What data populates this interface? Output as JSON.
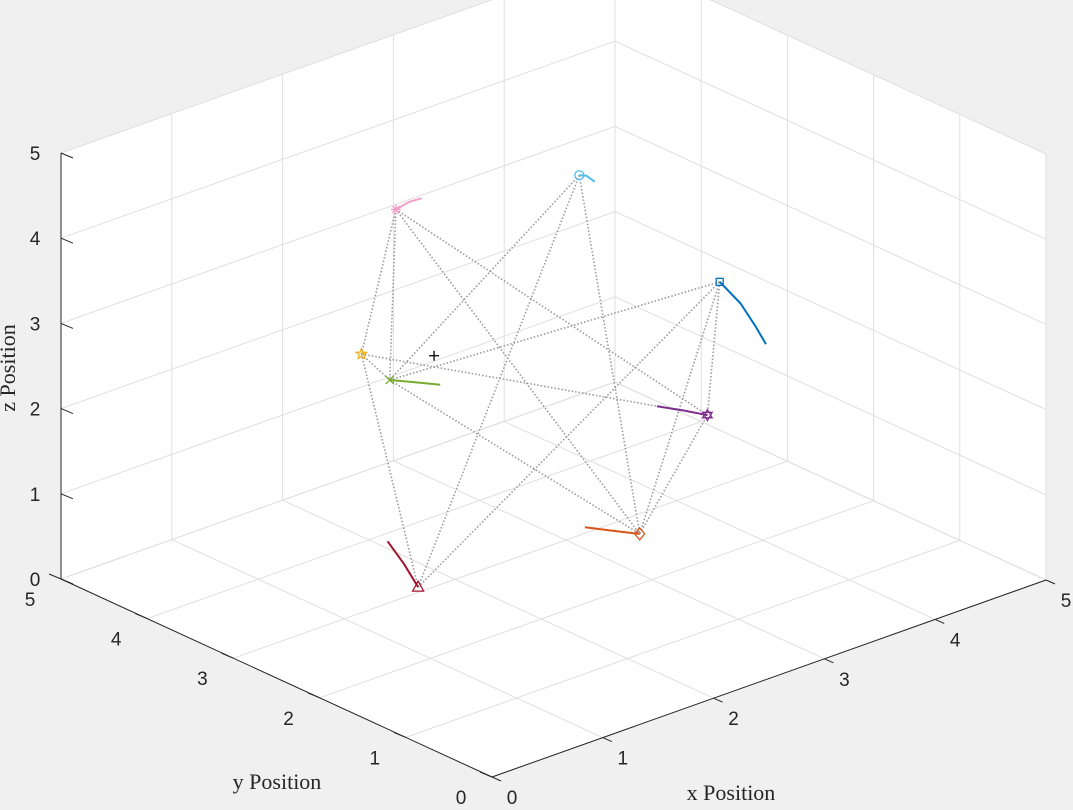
{
  "chart_data": {
    "type": "scatter",
    "projection": "3d",
    "xlabel": "x Position",
    "ylabel": "y Position",
    "zlabel": "z Position",
    "xlim": [
      0,
      5
    ],
    "ylim": [
      0,
      5
    ],
    "zlim": [
      0,
      5
    ],
    "grid": true,
    "xticks": [
      "0",
      "1",
      "2",
      "3",
      "4",
      "5"
    ],
    "yticks": [
      "0",
      "1",
      "2",
      "3",
      "4",
      "5"
    ],
    "zticks": [
      "0",
      "1",
      "2",
      "3",
      "4",
      "5"
    ],
    "center_point": {
      "x": 2.2,
      "y": 3.5,
      "z": 2.3,
      "marker": "+",
      "color": "#000000"
    },
    "agents": [
      {
        "marker": "square",
        "color": "#0072BD",
        "x": 4.0,
        "y": 2.5,
        "z": 2.8,
        "trail": [
          [
            4.0,
            2.5,
            2.8
          ],
          [
            4.15,
            2.45,
            2.5
          ],
          [
            4.25,
            2.4,
            2.2
          ],
          [
            4.3,
            2.35,
            2.0
          ]
        ]
      },
      {
        "marker": "diamond",
        "color": "#D95319",
        "x": 2.5,
        "y": 1.5,
        "z": 1.0,
        "trail": [
          [
            2.5,
            1.5,
            1.0
          ],
          [
            2.35,
            1.62,
            1.05
          ],
          [
            2.2,
            1.75,
            1.1
          ]
        ]
      },
      {
        "marker": "star",
        "color": "#EDB120",
        "x": 1.0,
        "y": 2.8,
        "z": 3.2,
        "trail": [
          [
            1.0,
            2.8,
            3.2
          ],
          [
            1.02,
            2.79,
            3.22
          ]
        ]
      },
      {
        "marker": "hexagram",
        "color": "#7E2F8E",
        "x": 3.5,
        "y": 2.0,
        "z": 1.7,
        "trail": [
          [
            3.5,
            2.0,
            1.7
          ],
          [
            3.35,
            2.1,
            1.78
          ],
          [
            3.2,
            2.2,
            1.85
          ]
        ]
      },
      {
        "marker": "x",
        "color": "#77AC30",
        "x": 1.8,
        "y": 3.5,
        "z": 2.2,
        "trail": [
          [
            1.8,
            3.5,
            2.2
          ],
          [
            1.95,
            3.4,
            2.15
          ],
          [
            2.1,
            3.3,
            2.1
          ]
        ]
      },
      {
        "marker": "circle",
        "color": "#4DBEEE",
        "x": 3.9,
        "y": 4.0,
        "z": 3.4,
        "trail": [
          [
            3.9,
            4.0,
            3.4
          ],
          [
            3.95,
            3.98,
            3.38
          ],
          [
            4.0,
            3.95,
            3.3
          ]
        ]
      },
      {
        "marker": "triangle",
        "color": "#A2142F",
        "x": 0.5,
        "y": 1.5,
        "z": 1.3,
        "trail": [
          [
            0.5,
            1.5,
            1.3
          ],
          [
            0.45,
            1.6,
            1.55
          ],
          [
            0.38,
            1.7,
            1.8
          ]
        ]
      },
      {
        "marker": "asterisk",
        "color": "#F59EC9",
        "x": 2.4,
        "y": 4.2,
        "z": 3.6,
        "trail": [
          [
            2.4,
            4.2,
            3.6
          ],
          [
            2.6,
            4.3,
            3.55
          ],
          [
            2.75,
            4.35,
            3.5
          ]
        ]
      }
    ],
    "edges": [
      [
        2,
        6
      ],
      [
        2,
        7
      ],
      [
        2,
        4
      ],
      [
        2,
        3
      ],
      [
        6,
        5
      ],
      [
        6,
        0
      ],
      [
        7,
        4
      ],
      [
        7,
        1
      ],
      [
        7,
        3
      ],
      [
        5,
        4
      ],
      [
        5,
        1
      ],
      [
        0,
        4
      ],
      [
        0,
        3
      ],
      [
        0,
        1
      ],
      [
        4,
        1
      ],
      [
        1,
        3
      ]
    ]
  }
}
